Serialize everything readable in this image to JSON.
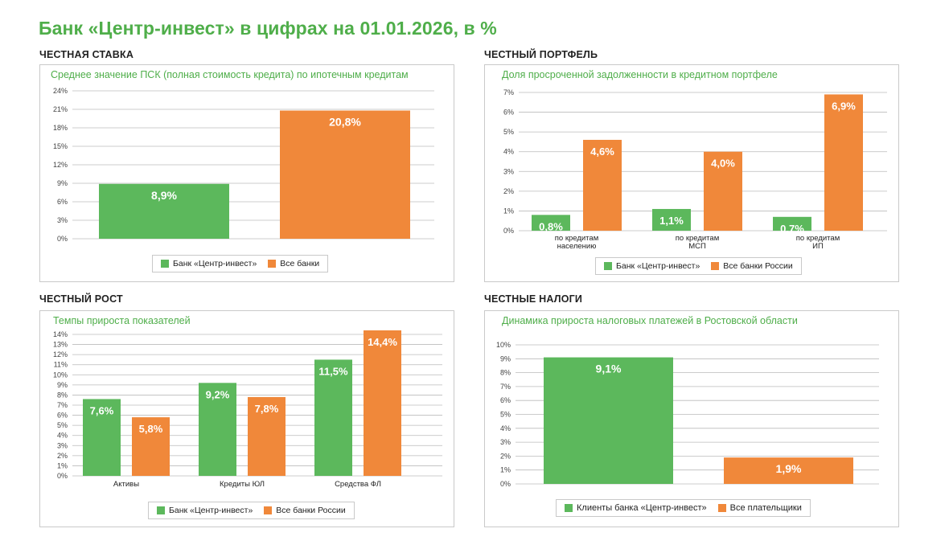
{
  "page": {
    "title": "Банк «Центр-инвест» в цифрах на 01.01.2026, в %"
  },
  "colors": {
    "green": "#5cb85c",
    "orange": "#f0883a",
    "grid": "#bbbbbb",
    "title_green": "#4fae4a"
  },
  "sections": [
    {
      "title": "ЧЕСТНАЯ СТАВКА"
    },
    {
      "title": "ЧЕСТНЫЙ ПОРТФЕЛЬ"
    },
    {
      "title": "ЧЕСТНЫЙ РОСТ"
    },
    {
      "title": "ЧЕСТНЫЕ НАЛОГИ"
    }
  ],
  "chart_data": [
    {
      "type": "bar",
      "title": "Среднее значение ПСК (полная стоимость кредита) по ипотечным кредитам",
      "categories": [
        ""
      ],
      "series": [
        {
          "name": "Банк «Центр-инвест»",
          "color": "green",
          "values": [
            8.9
          ],
          "labels": [
            "8,9%"
          ]
        },
        {
          "name": "Все банки",
          "color": "orange",
          "values": [
            20.8
          ],
          "labels": [
            "20,8%"
          ]
        }
      ],
      "ylim": [
        0,
        24
      ],
      "yticks": [
        "0%",
        "3%",
        "6%",
        "9%",
        "12%",
        "15%",
        "18%",
        "21%",
        "24%"
      ],
      "legend": [
        "Банк «Центр-инвест»",
        "Все банки"
      ]
    },
    {
      "type": "bar",
      "title": "Доля просроченной задолженности в кредитном портфеле",
      "categories": [
        "по кредитам населению",
        "по кредитам МСП",
        "по кредитам ИП"
      ],
      "category_lines": [
        [
          "по кредитам",
          "населению"
        ],
        [
          "по кредитам",
          "МСП"
        ],
        [
          "по кредитам",
          "ИП"
        ]
      ],
      "series": [
        {
          "name": "Банк «Центр-инвест»",
          "color": "green",
          "values": [
            0.8,
            1.1,
            0.7
          ],
          "labels": [
            "0,8%",
            "1,1%",
            "0,7%"
          ]
        },
        {
          "name": "Все банки России",
          "color": "orange",
          "values": [
            4.6,
            4.0,
            6.9
          ],
          "labels": [
            "4,6%",
            "4,0%",
            "6,9%"
          ]
        }
      ],
      "ylim": [
        0,
        7
      ],
      "yticks": [
        "0%",
        "1%",
        "2%",
        "3%",
        "4%",
        "5%",
        "6%",
        "7%"
      ],
      "legend": [
        "Банк «Центр-инвест»",
        "Все банки России"
      ]
    },
    {
      "type": "bar",
      "title": "Темпы прироста показателей",
      "categories": [
        "Активы",
        "Кредиты ЮЛ",
        "Средства ФЛ"
      ],
      "category_lines": [
        [
          "Активы"
        ],
        [
          "Кредиты ЮЛ"
        ],
        [
          "Средства ФЛ"
        ]
      ],
      "series": [
        {
          "name": "Банк «Центр-инвест»",
          "color": "green",
          "values": [
            7.6,
            9.2,
            11.5
          ],
          "labels": [
            "7,6%",
            "9,2%",
            "11,5%"
          ]
        },
        {
          "name": "Все банки России",
          "color": "orange",
          "values": [
            5.8,
            7.8,
            14.4
          ],
          "labels": [
            "5,8%",
            "7,8%",
            "14,4%"
          ]
        }
      ],
      "ylim": [
        0,
        14
      ],
      "yticks": [
        "0%",
        "1%",
        "2%",
        "3%",
        "4%",
        "5%",
        "6%",
        "7%",
        "8%",
        "9%",
        "10%",
        "11%",
        "12%",
        "13%",
        "14%"
      ],
      "legend": [
        "Банк «Центр-инвест»",
        "Все банки России"
      ]
    },
    {
      "type": "bar",
      "title": "Динамика прироста налоговых платежей в Ростовской области",
      "categories": [
        ""
      ],
      "series": [
        {
          "name": "Клиенты банка «Центр-инвест»",
          "color": "green",
          "values": [
            9.1
          ],
          "labels": [
            "9,1%"
          ]
        },
        {
          "name": "Все плательщики",
          "color": "orange",
          "values": [
            1.9
          ],
          "labels": [
            "1,9%"
          ]
        }
      ],
      "ylim": [
        0,
        10
      ],
      "yticks": [
        "0%",
        "1%",
        "2%",
        "3%",
        "4%",
        "5%",
        "6%",
        "7%",
        "8%",
        "9%",
        "10%"
      ],
      "legend": [
        "Клиенты банка «Центр-инвест»",
        "Все плательщики"
      ]
    }
  ]
}
